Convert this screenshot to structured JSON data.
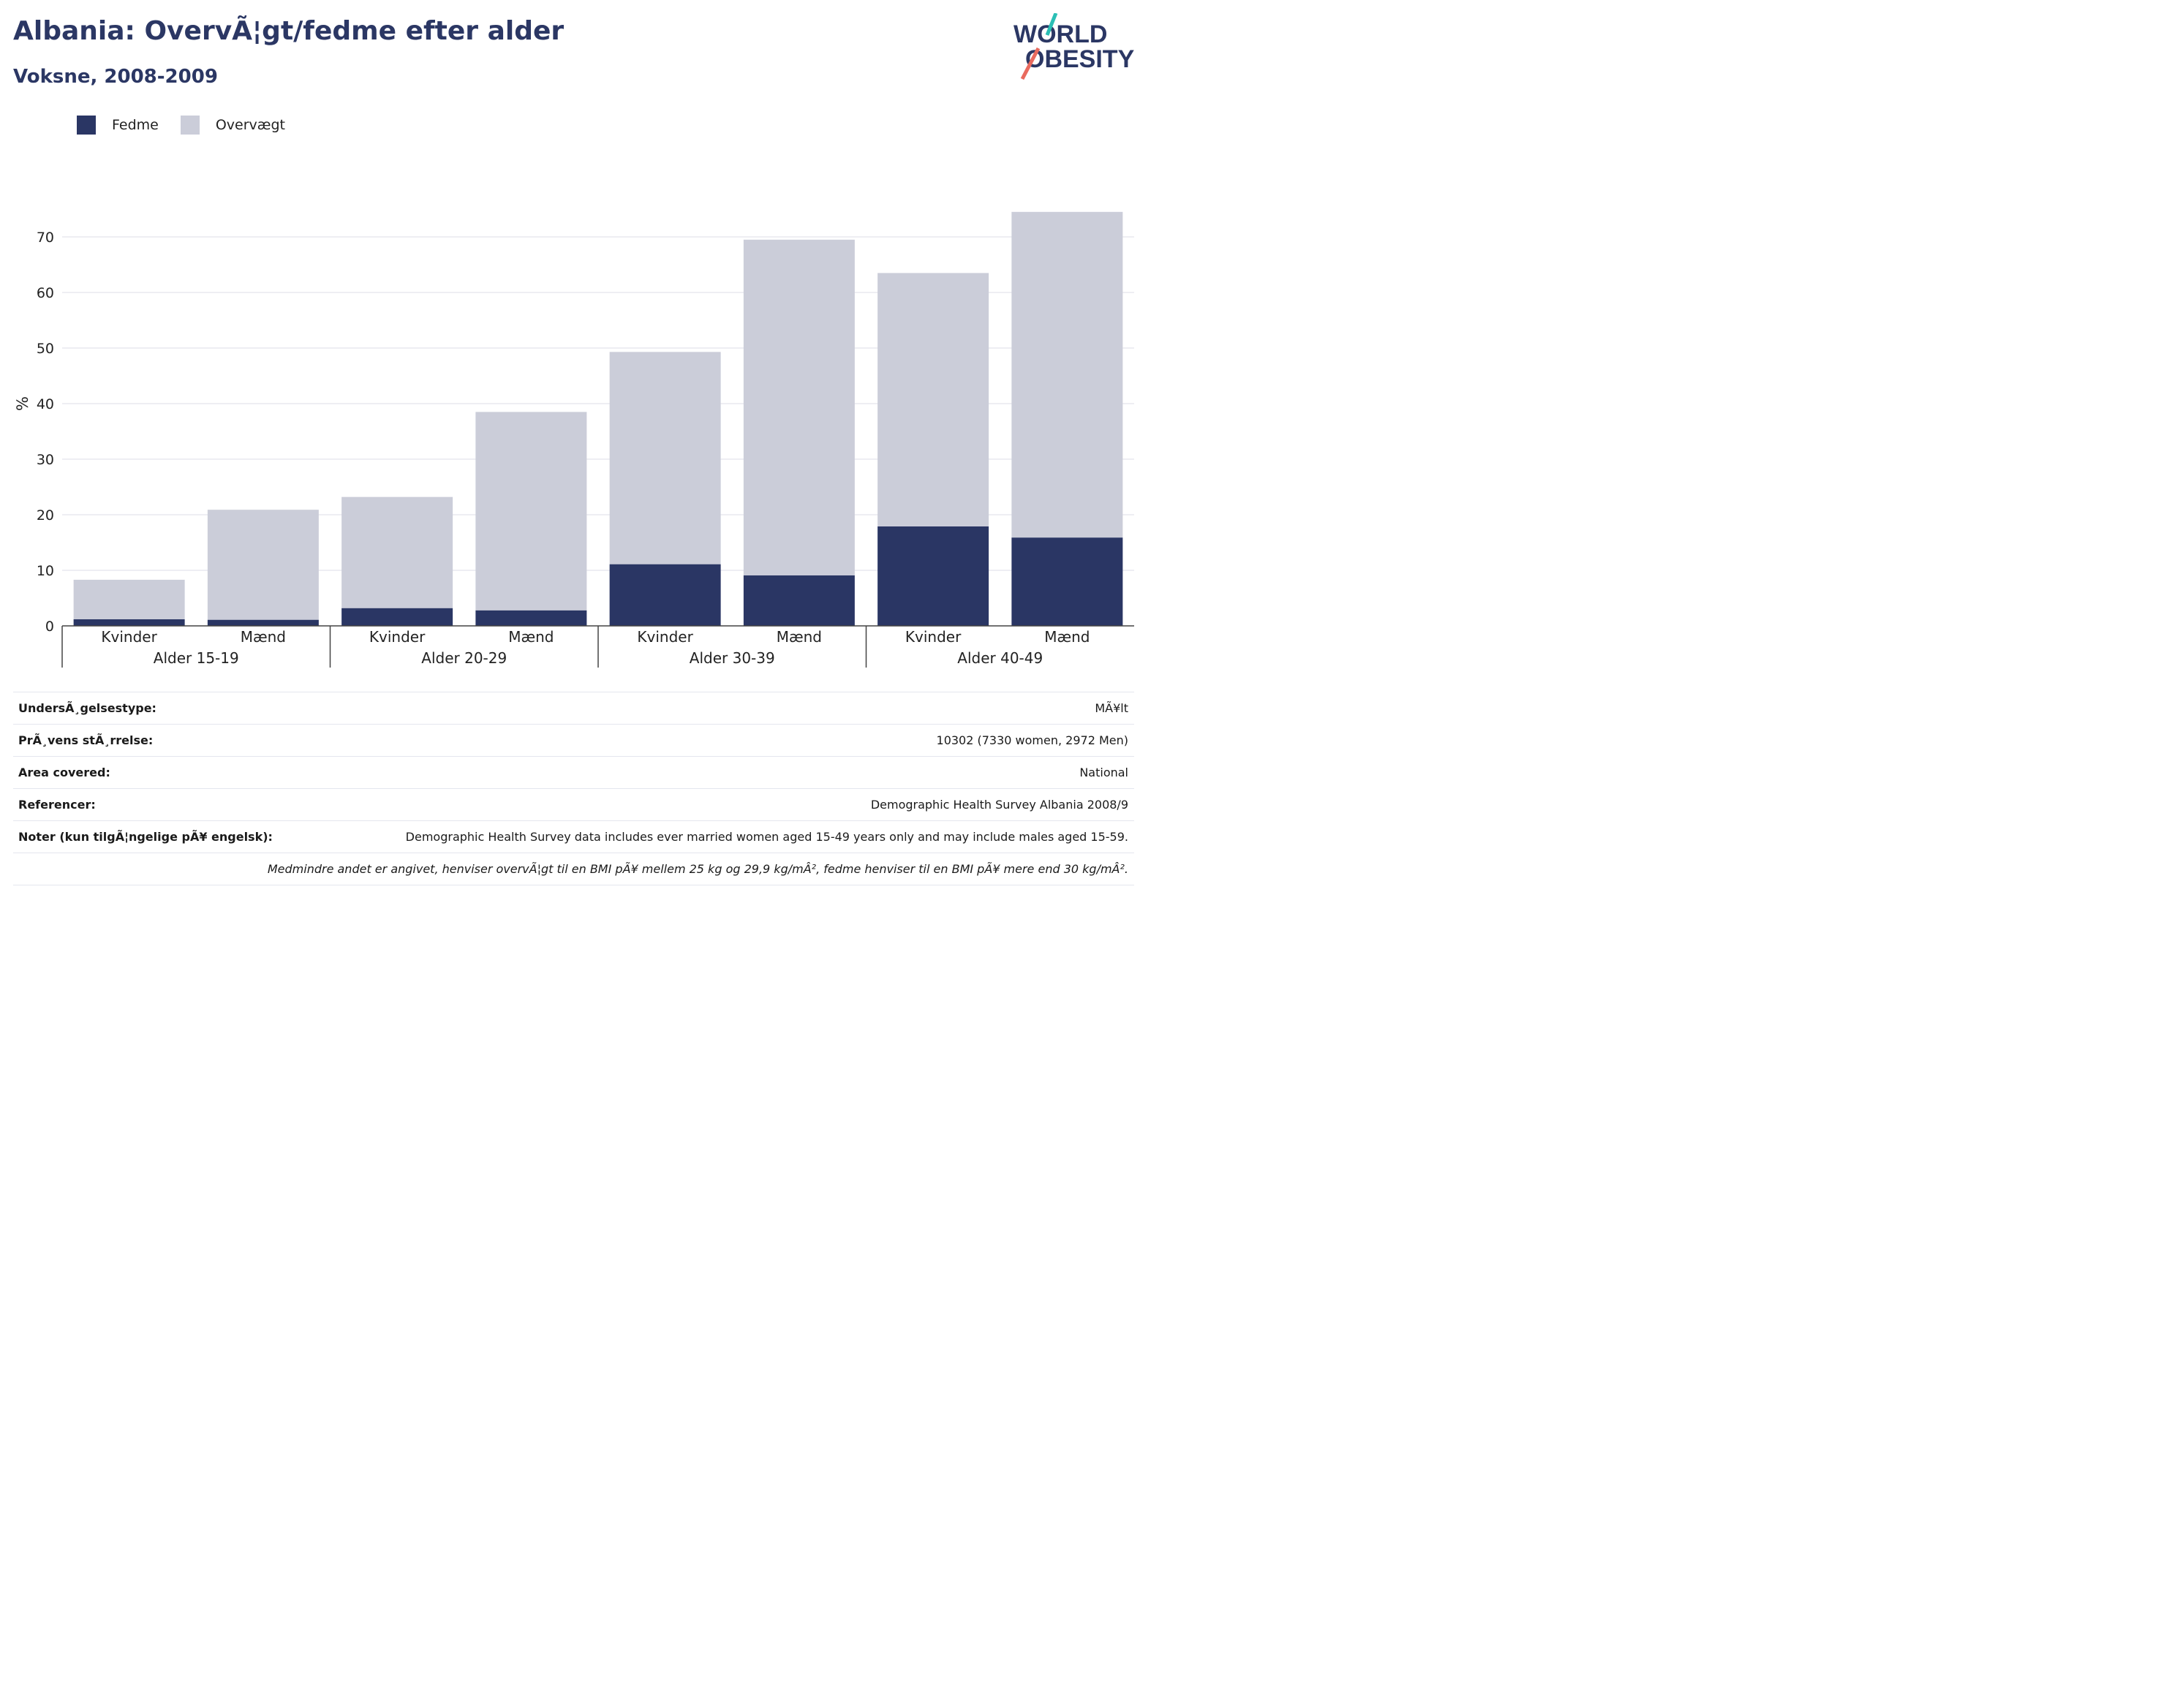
{
  "header": {
    "title": "Albania: OvervÃ¦gt/fedme efter alder",
    "subtitle": "Voksne, 2008-2009"
  },
  "logo": {
    "line1": "WORLD",
    "line2": "OBESITY"
  },
  "legend": [
    {
      "label": "Fedme",
      "color": "#2a3664"
    },
    {
      "label": "Overvægt",
      "color": "#cbcdd9"
    }
  ],
  "chart_data": {
    "type": "bar",
    "stacked": true,
    "ylabel": "%",
    "ylim": [
      0,
      75
    ],
    "yticks": [
      0,
      10,
      20,
      30,
      40,
      50,
      60,
      70
    ],
    "grid": true,
    "legend_position": "top-left",
    "groups": [
      "Alder 15-19",
      "Alder 20-29",
      "Alder 30-39",
      "Alder 40-49"
    ],
    "categories": [
      "Kvinder",
      "Mænd",
      "Kvinder",
      "Mænd",
      "Kvinder",
      "Mænd",
      "Kvinder",
      "Mænd"
    ],
    "series": [
      {
        "name": "Fedme",
        "color": "#2a3664",
        "values": [
          1.2,
          1.1,
          3.2,
          2.8,
          11.1,
          9.1,
          17.9,
          15.9
        ]
      },
      {
        "name": "Overvægt",
        "color": "#cbcdd9",
        "values": [
          7.1,
          19.8,
          20.0,
          35.7,
          38.2,
          60.4,
          45.6,
          58.6
        ]
      }
    ]
  },
  "footer": {
    "rows": [
      {
        "label": "UndersÃ¸gelsestype:",
        "value": "MÃ¥lt"
      },
      {
        "label": "PrÃ¸vens stÃ¸rrelse:",
        "value": "10302 (7330 women, 2972 Men)"
      },
      {
        "label": "Area covered:",
        "value": "National"
      },
      {
        "label": "Referencer:",
        "value": "Demographic Health Survey Albania 2008/9"
      },
      {
        "label": "Noter (kun tilgÃ¦ngelige pÃ¥ engelsk):",
        "value": "Demographic Health Survey data includes ever married women aged 15-49 years only and may include males aged 15-59."
      }
    ],
    "note": "Medmindre andet er angivet, henviser overvÃ¦gt til en BMI pÃ¥ mellem 25 kg og 29,9 kg/mÂ², fedme henviser til en BMI pÃ¥ mere end 30 kg/mÂ²."
  }
}
